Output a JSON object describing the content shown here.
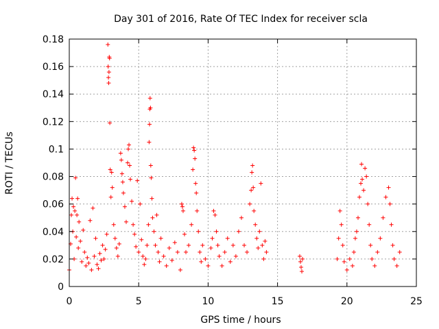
{
  "chart_data": {
    "type": "scatter",
    "title": "Day 301 of 2016, Rate Of TEC Index for receiver scla",
    "xlabel": "GPS time / hours",
    "ylabel": "ROTI / TECUs",
    "xlim": [
      0,
      25
    ],
    "ylim": [
      0,
      0.18
    ],
    "xticks": [
      0,
      5,
      10,
      15,
      20,
      25
    ],
    "xtick_labels": [
      "0",
      "5",
      "10",
      "15",
      "20",
      "25"
    ],
    "yticks": [
      0,
      0.02,
      0.04,
      0.06,
      0.08,
      0.1,
      0.12,
      0.14,
      0.16,
      0.18
    ],
    "ytick_labels": [
      "0",
      "0.02",
      "0.04",
      "0.06",
      "0.08",
      "0.1",
      "0.12",
      "0.14",
      "0.16",
      "0.18"
    ],
    "grid": true,
    "marker": "+",
    "series": [
      {
        "name": "ROTI",
        "color": "#ff0000",
        "points": [
          [
            0.0,
            0.012
          ],
          [
            0.1,
            0.031
          ],
          [
            0.15,
            0.052
          ],
          [
            0.2,
            0.064
          ],
          [
            0.25,
            0.04
          ],
          [
            0.3,
            0.058
          ],
          [
            0.35,
            0.02
          ],
          [
            0.4,
            0.055
          ],
          [
            0.45,
            0.079
          ],
          [
            0.5,
            0.036
          ],
          [
            0.55,
            0.052
          ],
          [
            0.6,
            0.064
          ],
          [
            0.65,
            0.028
          ],
          [
            0.7,
            0.047
          ],
          [
            0.8,
            0.033
          ],
          [
            0.9,
            0.018
          ],
          [
            1.0,
            0.041
          ],
          [
            1.1,
            0.025
          ],
          [
            1.2,
            0.015
          ],
          [
            1.3,
            0.021
          ],
          [
            1.4,
            0.017
          ],
          [
            1.5,
            0.048
          ],
          [
            1.6,
            0.012
          ],
          [
            1.7,
            0.057
          ],
          [
            1.8,
            0.022
          ],
          [
            1.9,
            0.035
          ],
          [
            2.0,
            0.016
          ],
          [
            2.1,
            0.013
          ],
          [
            2.2,
            0.024
          ],
          [
            2.3,
            0.019
          ],
          [
            2.4,
            0.03
          ],
          [
            2.5,
            0.02
          ],
          [
            2.6,
            0.027
          ],
          [
            2.7,
            0.038
          ],
          [
            2.78,
            0.176
          ],
          [
            2.8,
            0.16
          ],
          [
            2.82,
            0.152
          ],
          [
            2.84,
            0.148
          ],
          [
            2.86,
            0.156
          ],
          [
            2.88,
            0.167
          ],
          [
            2.9,
            0.166
          ],
          [
            2.92,
            0.119
          ],
          [
            2.95,
            0.085
          ],
          [
            3.0,
            0.065
          ],
          [
            3.05,
            0.083
          ],
          [
            3.1,
            0.072
          ],
          [
            3.2,
            0.045
          ],
          [
            3.3,
            0.035
          ],
          [
            3.4,
            0.028
          ],
          [
            3.5,
            0.022
          ],
          [
            3.6,
            0.031
          ],
          [
            3.7,
            0.097
          ],
          [
            3.75,
            0.092
          ],
          [
            3.8,
            0.082
          ],
          [
            3.85,
            0.076
          ],
          [
            3.9,
            0.068
          ],
          [
            4.0,
            0.058
          ],
          [
            4.1,
            0.047
          ],
          [
            4.2,
            0.09
          ],
          [
            4.25,
            0.1
          ],
          [
            4.3,
            0.103
          ],
          [
            4.35,
            0.088
          ],
          [
            4.4,
            0.078
          ],
          [
            4.5,
            0.062
          ],
          [
            4.6,
            0.045
          ],
          [
            4.7,
            0.038
          ],
          [
            4.8,
            0.029
          ],
          [
            4.9,
            0.077
          ],
          [
            5.0,
            0.025
          ],
          [
            5.1,
            0.06
          ],
          [
            5.2,
            0.034
          ],
          [
            5.3,
            0.022
          ],
          [
            5.4,
            0.016
          ],
          [
            5.5,
            0.02
          ],
          [
            5.6,
            0.03
          ],
          [
            5.7,
            0.045
          ],
          [
            5.75,
            0.105
          ],
          [
            5.78,
            0.118
          ],
          [
            5.8,
            0.129
          ],
          [
            5.82,
            0.137
          ],
          [
            5.85,
            0.13
          ],
          [
            5.87,
            0.088
          ],
          [
            5.9,
            0.079
          ],
          [
            5.95,
            0.064
          ],
          [
            6.0,
            0.05
          ],
          [
            6.1,
            0.04
          ],
          [
            6.2,
            0.03
          ],
          [
            6.3,
            0.052
          ],
          [
            6.4,
            0.025
          ],
          [
            6.5,
            0.018
          ],
          [
            6.6,
            0.035
          ],
          [
            6.8,
            0.022
          ],
          [
            7.0,
            0.015
          ],
          [
            7.2,
            0.028
          ],
          [
            7.4,
            0.019
          ],
          [
            7.6,
            0.032
          ],
          [
            7.8,
            0.025
          ],
          [
            8.0,
            0.012
          ],
          [
            8.1,
            0.06
          ],
          [
            8.15,
            0.058
          ],
          [
            8.2,
            0.055
          ],
          [
            8.3,
            0.038
          ],
          [
            8.4,
            0.025
          ],
          [
            8.6,
            0.03
          ],
          [
            8.8,
            0.045
          ],
          [
            8.9,
            0.085
          ],
          [
            8.95,
            0.101
          ],
          [
            9.0,
            0.099
          ],
          [
            9.05,
            0.093
          ],
          [
            9.1,
            0.075
          ],
          [
            9.15,
            0.068
          ],
          [
            9.2,
            0.055
          ],
          [
            9.3,
            0.04
          ],
          [
            9.4,
            0.025
          ],
          [
            9.5,
            0.018
          ],
          [
            9.6,
            0.03
          ],
          [
            9.8,
            0.02
          ],
          [
            10.0,
            0.015
          ],
          [
            10.2,
            0.028
          ],
          [
            10.3,
            0.035
          ],
          [
            10.4,
            0.055
          ],
          [
            10.5,
            0.052
          ],
          [
            10.6,
            0.04
          ],
          [
            10.7,
            0.03
          ],
          [
            10.8,
            0.022
          ],
          [
            11.0,
            0.015
          ],
          [
            11.2,
            0.025
          ],
          [
            11.4,
            0.035
          ],
          [
            11.6,
            0.018
          ],
          [
            11.8,
            0.03
          ],
          [
            12.0,
            0.022
          ],
          [
            12.2,
            0.04
          ],
          [
            12.4,
            0.05
          ],
          [
            12.6,
            0.03
          ],
          [
            12.8,
            0.025
          ],
          [
            13.0,
            0.06
          ],
          [
            13.1,
            0.07
          ],
          [
            13.15,
            0.083
          ],
          [
            13.2,
            0.088
          ],
          [
            13.25,
            0.072
          ],
          [
            13.3,
            0.055
          ],
          [
            13.4,
            0.045
          ],
          [
            13.5,
            0.035
          ],
          [
            13.6,
            0.028
          ],
          [
            13.7,
            0.04
          ],
          [
            13.8,
            0.075
          ],
          [
            13.9,
            0.03
          ],
          [
            14.0,
            0.02
          ],
          [
            14.1,
            0.033
          ],
          [
            14.2,
            0.025
          ],
          [
            16.6,
            0.022
          ],
          [
            16.65,
            0.018
          ],
          [
            16.7,
            0.014
          ],
          [
            16.75,
            0.011
          ],
          [
            16.8,
            0.02
          ],
          [
            19.3,
            0.02
          ],
          [
            19.4,
            0.035
          ],
          [
            19.5,
            0.055
          ],
          [
            19.6,
            0.045
          ],
          [
            19.7,
            0.03
          ],
          [
            19.8,
            0.018
          ],
          [
            20.0,
            0.012
          ],
          [
            20.2,
            0.02
          ],
          [
            20.4,
            0.015
          ],
          [
            20.5,
            0.025
          ],
          [
            20.6,
            0.035
          ],
          [
            20.7,
            0.04
          ],
          [
            20.8,
            0.05
          ],
          [
            20.9,
            0.065
          ],
          [
            21.0,
            0.075
          ],
          [
            21.05,
            0.089
          ],
          [
            21.1,
            0.078
          ],
          [
            21.2,
            0.07
          ],
          [
            21.3,
            0.086
          ],
          [
            21.4,
            0.08
          ],
          [
            21.5,
            0.06
          ],
          [
            21.6,
            0.045
          ],
          [
            21.7,
            0.03
          ],
          [
            21.8,
            0.02
          ],
          [
            22.0,
            0.015
          ],
          [
            22.2,
            0.025
          ],
          [
            22.4,
            0.035
          ],
          [
            22.6,
            0.05
          ],
          [
            22.8,
            0.065
          ],
          [
            23.0,
            0.072
          ],
          [
            23.1,
            0.06
          ],
          [
            23.2,
            0.045
          ],
          [
            23.3,
            0.03
          ],
          [
            23.4,
            0.02
          ],
          [
            23.6,
            0.015
          ],
          [
            23.8,
            0.025
          ]
        ]
      }
    ]
  }
}
